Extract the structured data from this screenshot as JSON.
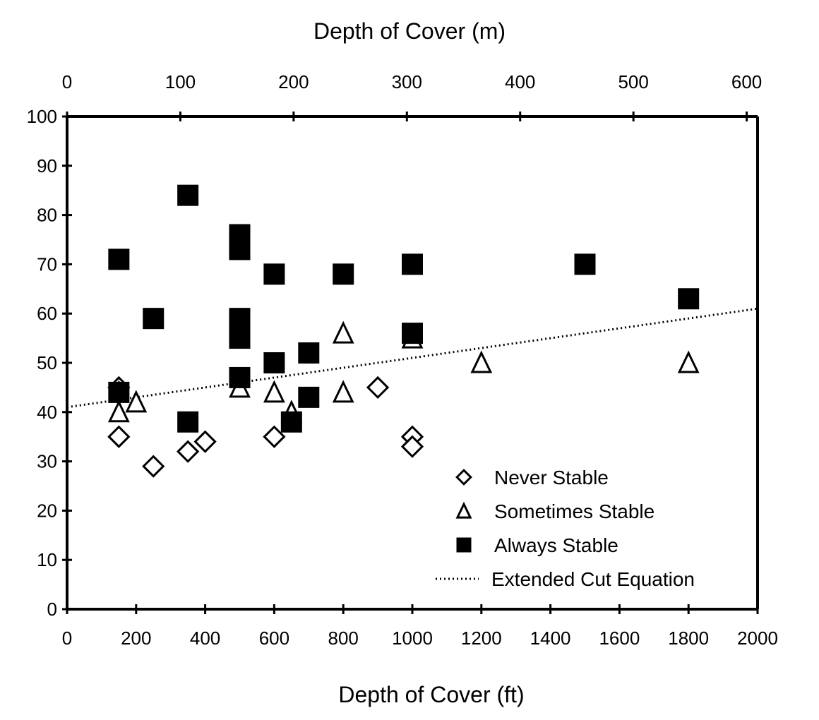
{
  "chart_data": {
    "type": "scatter",
    "title": "",
    "xlabel": "Depth of Cover (ft)",
    "x2label": "Depth of Cover (m)",
    "ylabel": "",
    "xlim": [
      0,
      2000
    ],
    "x2lim_m": [
      0,
      600
    ],
    "ylim": [
      0,
      100
    ],
    "xticks": [
      "0",
      "200",
      "400",
      "600",
      "800",
      "1000",
      "1200",
      "1400",
      "1600",
      "1800",
      "2000"
    ],
    "x2ticks": [
      "0",
      "100",
      "200",
      "300",
      "400",
      "500",
      "600"
    ],
    "yticks": [
      "0",
      "10",
      "20",
      "30",
      "40",
      "50",
      "60",
      "70",
      "80",
      "90",
      "100"
    ],
    "legend_position": "bottom-right",
    "series": [
      {
        "name": "Never Stable",
        "marker": "diamond",
        "points": [
          [
            150,
            45
          ],
          [
            150,
            35
          ],
          [
            250,
            29
          ],
          [
            350,
            32
          ],
          [
            400,
            34
          ],
          [
            600,
            35
          ],
          [
            900,
            45
          ],
          [
            1000,
            35
          ],
          [
            1000,
            33
          ]
        ]
      },
      {
        "name": "Sometimes Stable",
        "marker": "triangle",
        "points": [
          [
            150,
            44
          ],
          [
            150,
            40
          ],
          [
            200,
            42
          ],
          [
            500,
            45
          ],
          [
            600,
            44
          ],
          [
            650,
            40
          ],
          [
            800,
            56
          ],
          [
            800,
            44
          ],
          [
            1000,
            55
          ],
          [
            1200,
            50
          ],
          [
            1800,
            50
          ]
        ]
      },
      {
        "name": "Always Stable",
        "marker": "square",
        "points": [
          [
            150,
            71
          ],
          [
            150,
            44
          ],
          [
            250,
            59
          ],
          [
            350,
            84
          ],
          [
            350,
            38
          ],
          [
            500,
            76
          ],
          [
            500,
            73
          ],
          [
            500,
            59
          ],
          [
            500,
            55
          ],
          [
            500,
            47
          ],
          [
            600,
            68
          ],
          [
            600,
            50
          ],
          [
            650,
            38
          ],
          [
            700,
            52
          ],
          [
            700,
            43
          ],
          [
            800,
            68
          ],
          [
            1000,
            70
          ],
          [
            1000,
            56
          ],
          [
            1500,
            70
          ],
          [
            1800,
            63
          ]
        ]
      },
      {
        "name": "Extended Cut Equation",
        "marker": "dotted-line",
        "points": [
          [
            0,
            41
          ],
          [
            2000,
            61
          ]
        ]
      }
    ]
  }
}
